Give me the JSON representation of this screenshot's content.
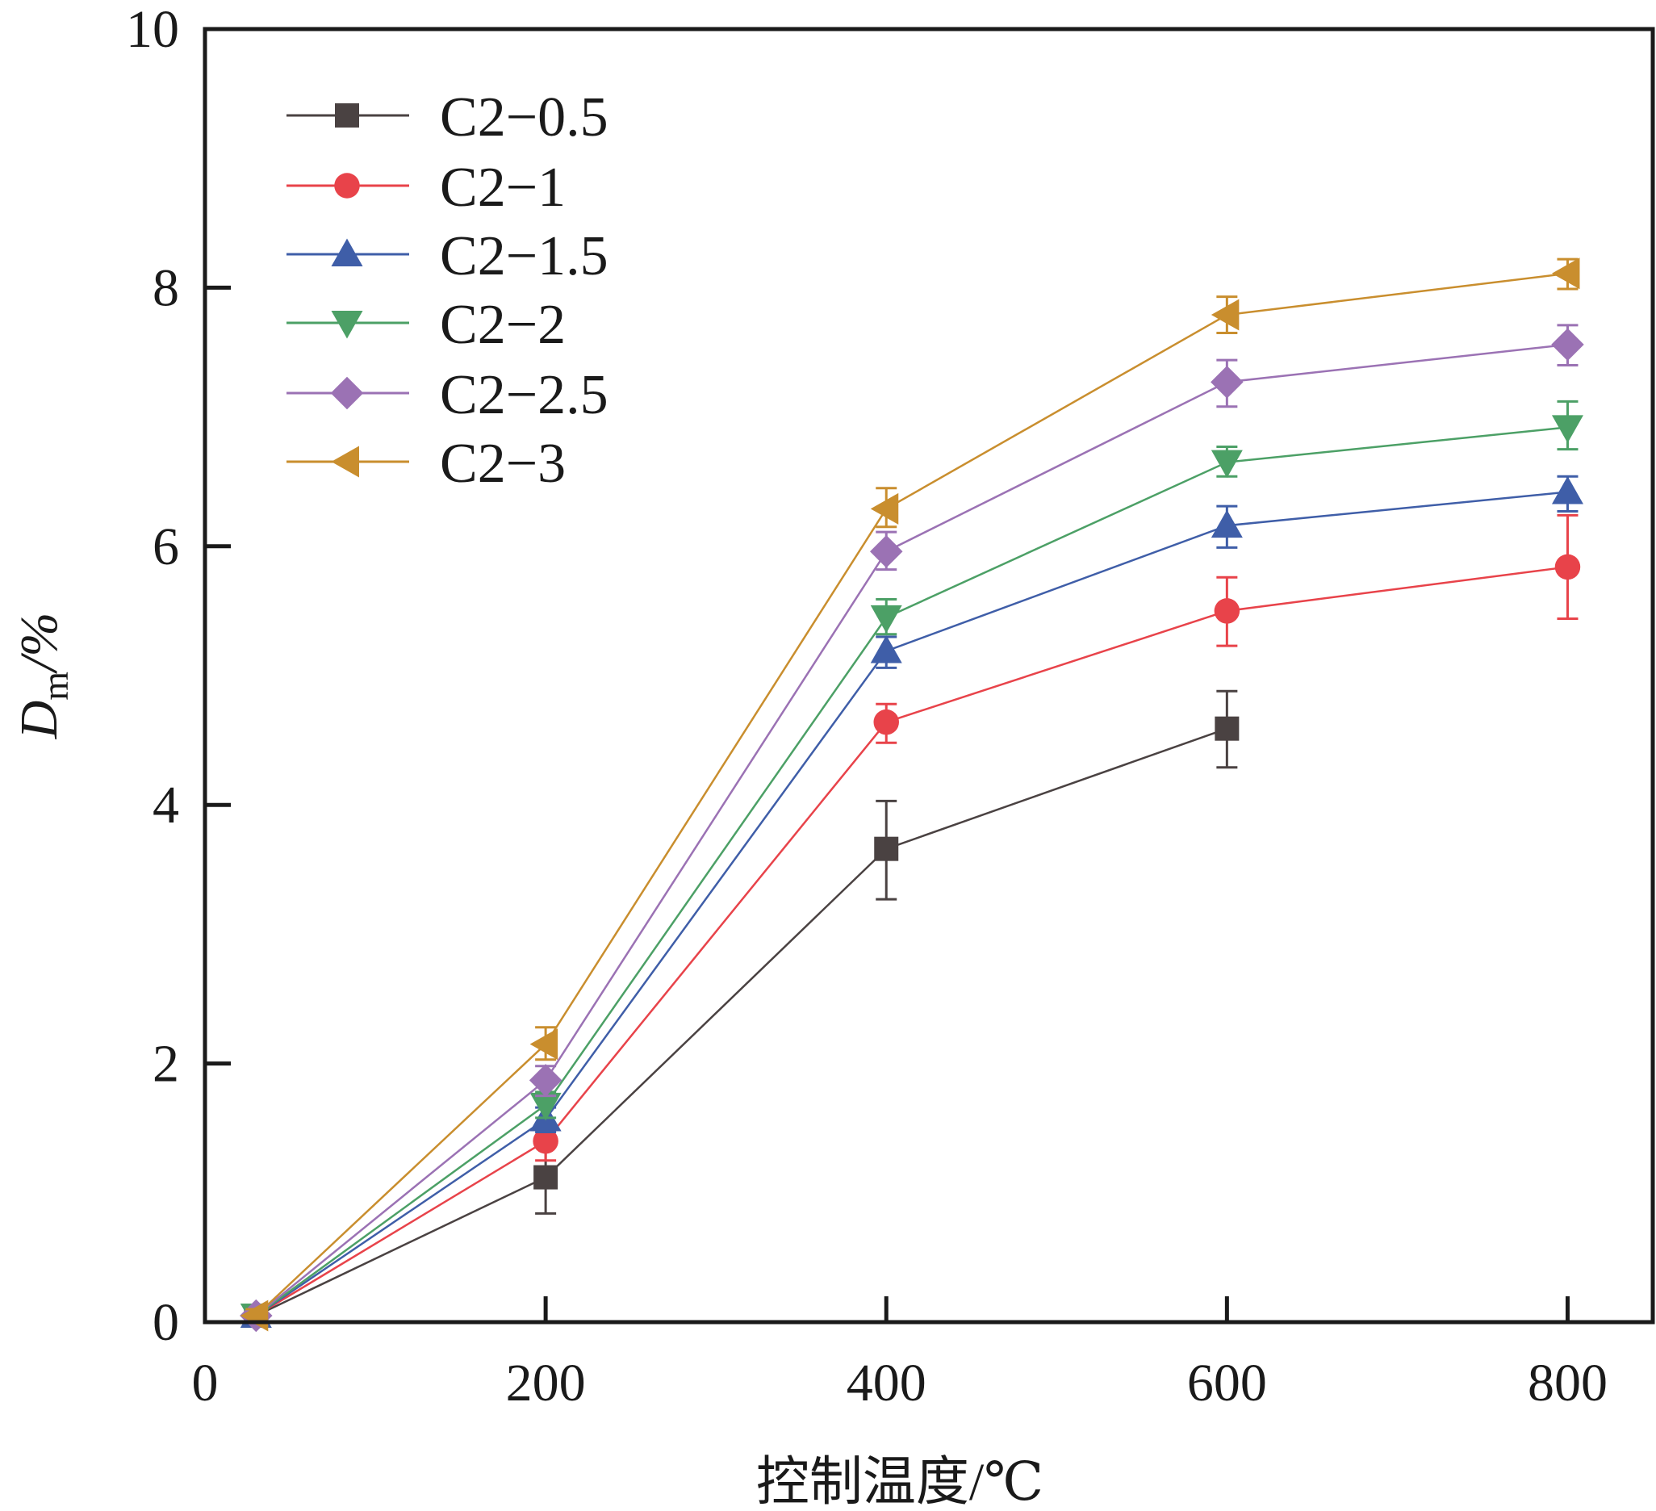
{
  "chart_data": {
    "type": "line",
    "title": "",
    "xlabel": "控制温度/℃",
    "ylabel_main": "D",
    "ylabel_sub": "m",
    "ylabel_unit": "/%",
    "xlim": [
      0,
      850
    ],
    "ylim": [
      0,
      10
    ],
    "xticks": [
      0,
      200,
      400,
      600,
      800
    ],
    "xtick_labels": [
      "0",
      "200",
      "400",
      "600",
      "800"
    ],
    "yticks": [
      0,
      2,
      4,
      6,
      8,
      10
    ],
    "ytick_labels": [
      "0",
      "2",
      "4",
      "6",
      "8",
      "10"
    ],
    "grid": false,
    "legend_position": "top-left",
    "series": [
      {
        "name": "C2−0.5",
        "color": "#4a4242",
        "marker": "square",
        "x": [
          30,
          200,
          400,
          600
        ],
        "values": [
          0.05,
          1.12,
          3.66,
          4.59
        ],
        "err_low": [
          0.0,
          0.84,
          3.27,
          4.29
        ],
        "err_high": [
          0.08,
          1.4,
          4.03,
          4.88
        ]
      },
      {
        "name": "C2−1",
        "color": "#e8434a",
        "marker": "circle",
        "x": [
          30,
          200,
          400,
          600,
          800
        ],
        "values": [
          0.05,
          1.4,
          4.64,
          5.5,
          5.84
        ],
        "err_low": [
          0.0,
          1.25,
          4.48,
          5.23,
          5.44
        ],
        "err_high": [
          0.08,
          1.5,
          4.78,
          5.76,
          6.24
        ]
      },
      {
        "name": "C2−1.5",
        "color": "#3f5ea8",
        "marker": "triangle-up",
        "x": [
          30,
          200,
          400,
          600,
          800
        ],
        "values": [
          0.05,
          1.57,
          5.19,
          6.16,
          6.42
        ],
        "err_low": [
          0.0,
          1.47,
          5.06,
          5.99,
          6.27
        ],
        "err_high": [
          0.1,
          1.66,
          5.3,
          6.31,
          6.54
        ]
      },
      {
        "name": "C2−2",
        "color": "#4ca066",
        "marker": "triangle-down",
        "x": [
          30,
          200,
          400,
          600,
          800
        ],
        "values": [
          0.05,
          1.68,
          5.45,
          6.65,
          6.92
        ],
        "err_low": [
          0.0,
          1.58,
          5.32,
          6.54,
          6.75
        ],
        "err_high": [
          0.1,
          1.78,
          5.59,
          6.77,
          7.12
        ]
      },
      {
        "name": "C2−2.5",
        "color": "#9b72b4",
        "marker": "diamond",
        "x": [
          30,
          200,
          400,
          600,
          800
        ],
        "values": [
          0.05,
          1.87,
          5.96,
          7.27,
          7.56
        ],
        "err_low": [
          0.0,
          1.75,
          5.82,
          7.08,
          7.4
        ],
        "err_high": [
          0.1,
          1.98,
          6.11,
          7.44,
          7.71
        ]
      },
      {
        "name": "C2−3",
        "color": "#c98e2e",
        "marker": "triangle-left",
        "x": [
          30,
          200,
          400,
          600,
          800
        ],
        "values": [
          0.05,
          2.15,
          6.29,
          7.79,
          8.11
        ],
        "err_low": [
          0.0,
          2.03,
          6.15,
          7.65,
          7.99
        ],
        "err_high": [
          0.1,
          2.28,
          6.45,
          7.93,
          8.22
        ]
      }
    ]
  }
}
